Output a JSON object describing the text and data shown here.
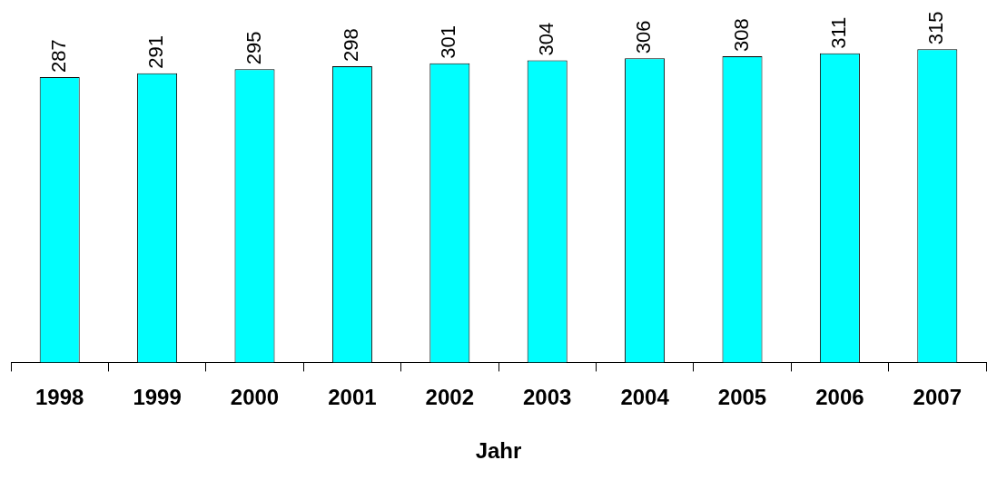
{
  "chart_data": {
    "type": "bar",
    "xlabel": "Jahr",
    "categories": [
      "1998",
      "1999",
      "2000",
      "2001",
      "2002",
      "2003",
      "2004",
      "2005",
      "2006",
      "2007"
    ],
    "values": [
      287,
      291,
      295,
      298,
      301,
      304,
      306,
      308,
      311,
      315
    ],
    "color": "#00ffff",
    "data_labels": true,
    "grid": false,
    "legend": false
  }
}
